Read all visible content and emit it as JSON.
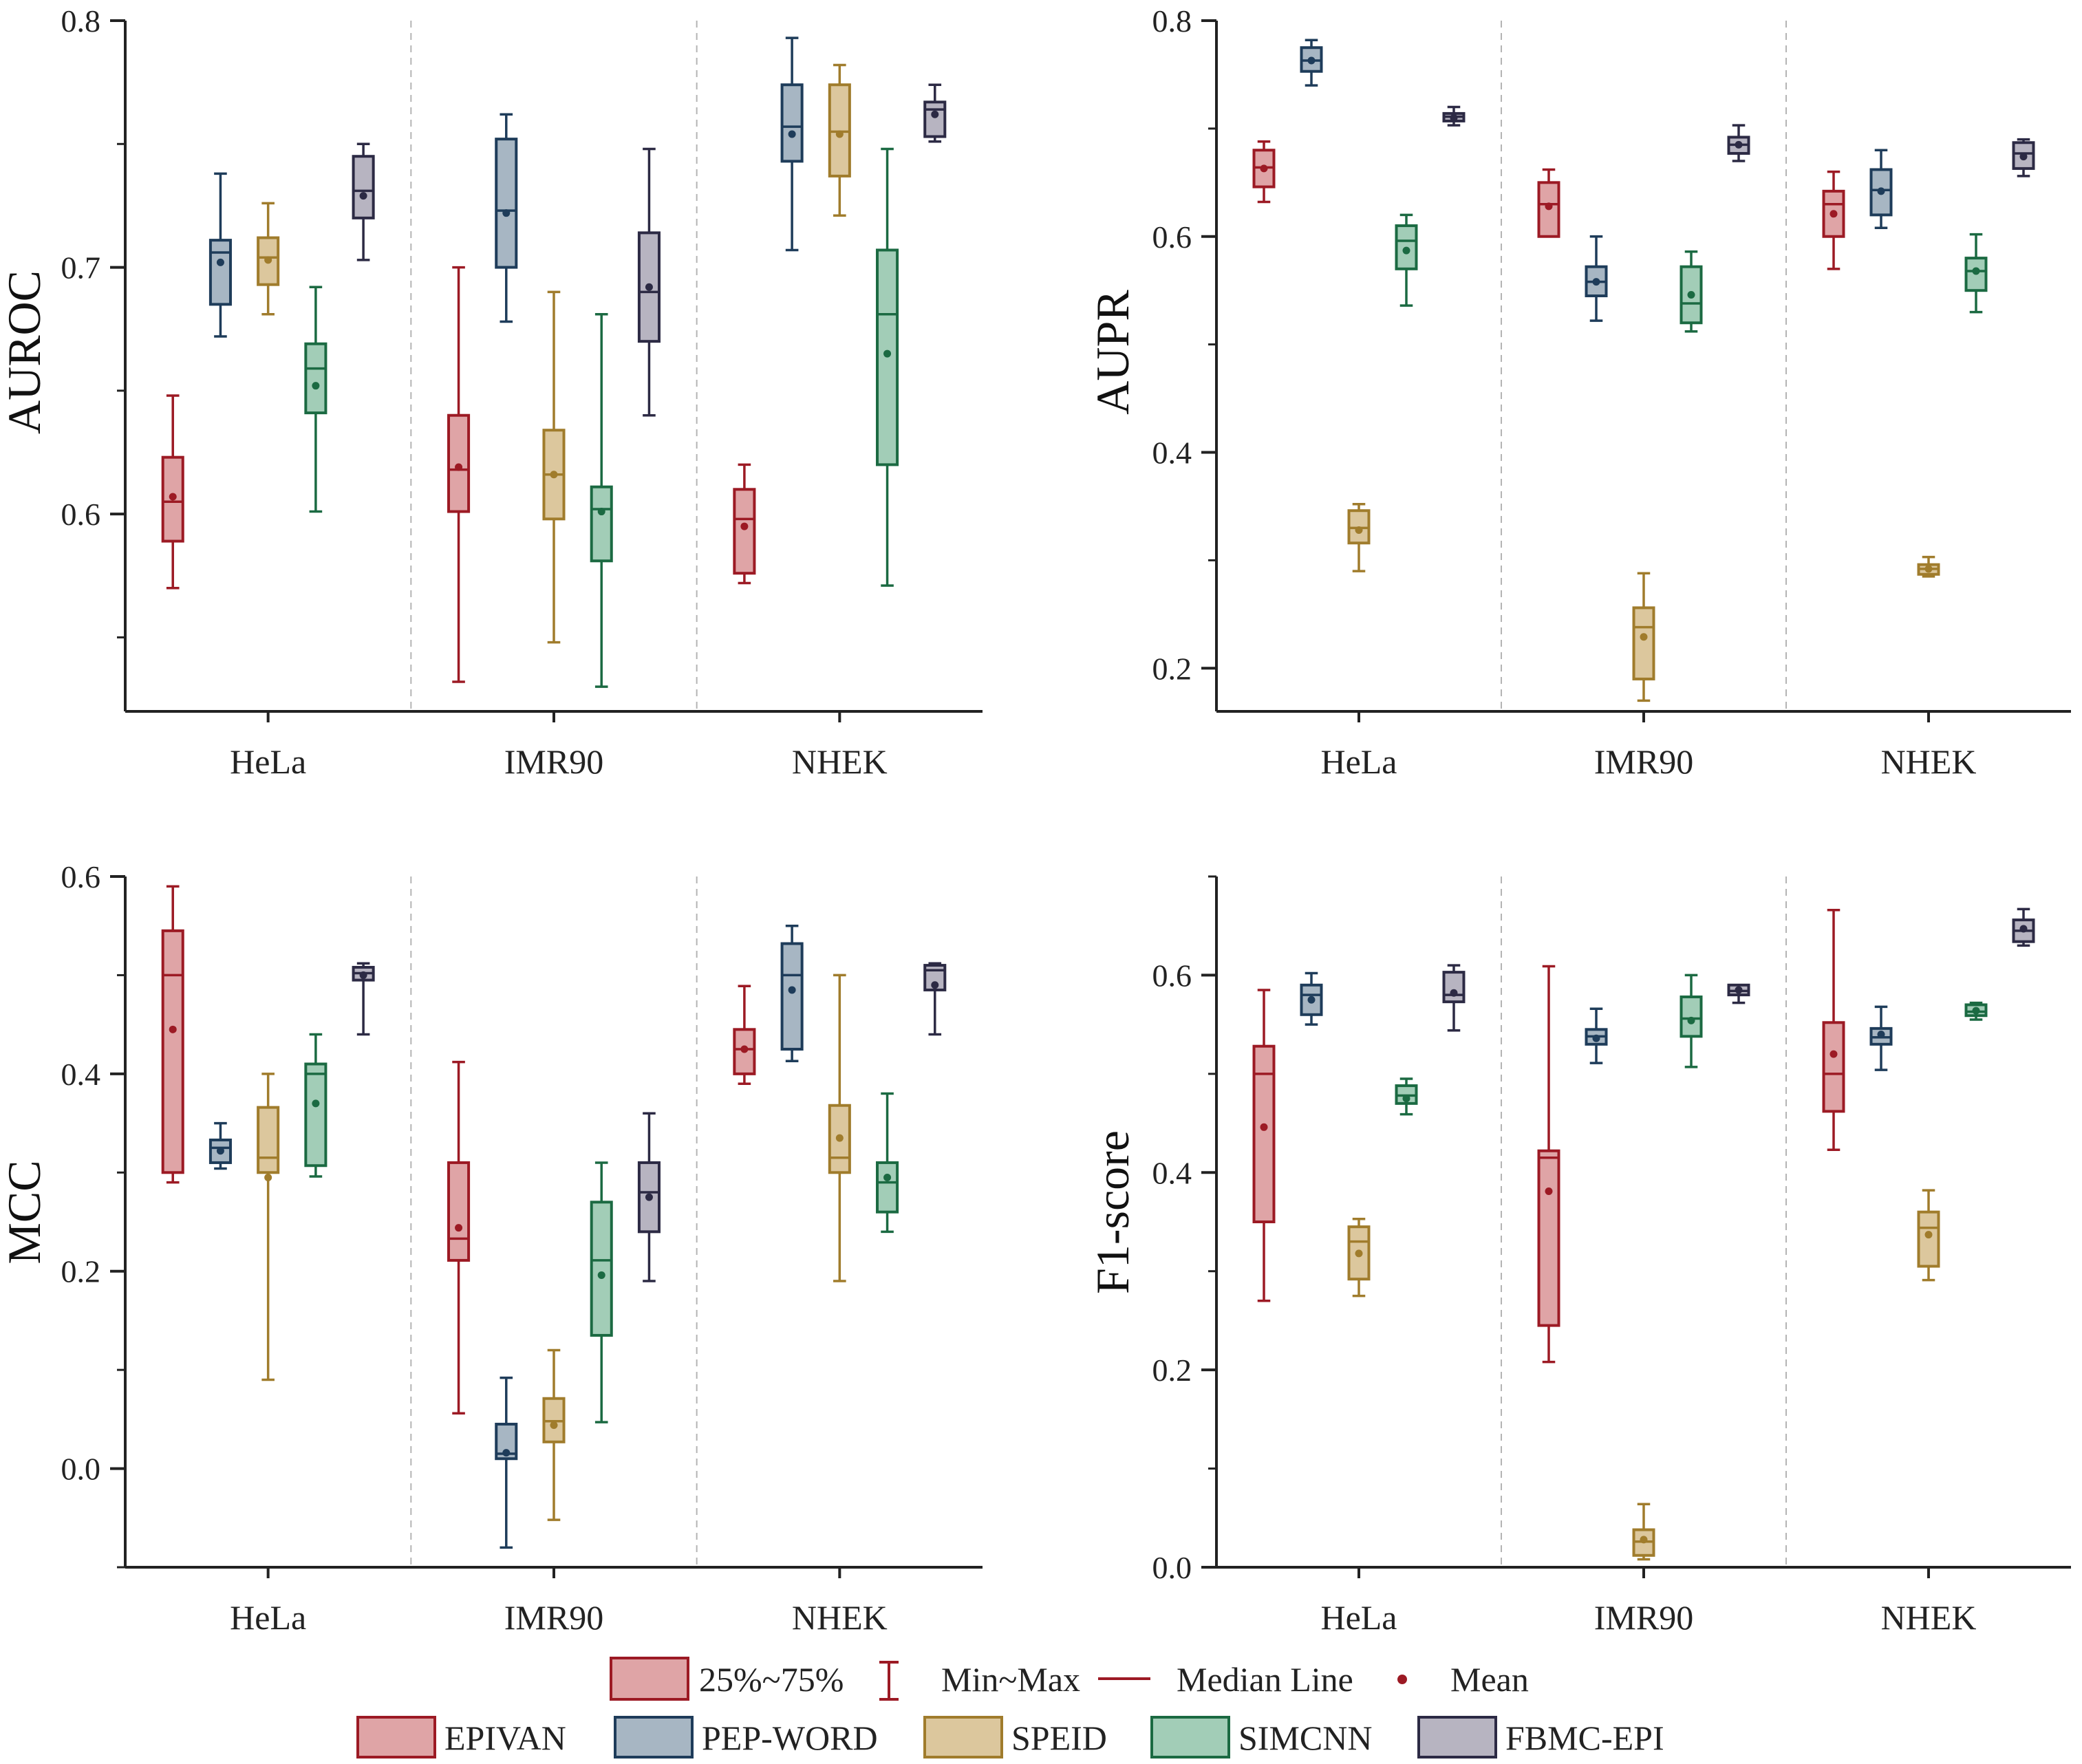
{
  "chart_data": [
    {
      "type": "box",
      "ylabel": "AUROC",
      "ylim": [
        0.52,
        0.8
      ],
      "yticks": [
        0.6,
        0.7,
        0.8
      ],
      "yminor": [
        0.55,
        0.65,
        0.75
      ],
      "ytick_labels": [
        "0.6",
        "0.7",
        "0.8"
      ],
      "groups": [
        "HeLa",
        "IMR90",
        "NHEK"
      ],
      "data": {
        "HeLa": [
          {
            "method": "EPIVAN",
            "min": 0.57,
            "q1": 0.589,
            "median": 0.605,
            "q3": 0.623,
            "max": 0.648,
            "mean": 0.607
          },
          {
            "method": "PEP-WORD",
            "min": 0.672,
            "q1": 0.685,
            "median": 0.706,
            "q3": 0.711,
            "max": 0.738,
            "mean": 0.702
          },
          {
            "method": "SPEID",
            "min": 0.681,
            "q1": 0.693,
            "median": 0.704,
            "q3": 0.712,
            "max": 0.726,
            "mean": 0.703
          },
          {
            "method": "SIMCNN",
            "min": 0.601,
            "q1": 0.641,
            "median": 0.659,
            "q3": 0.669,
            "max": 0.692,
            "mean": 0.652
          },
          {
            "method": "FBMC-EPI",
            "min": 0.703,
            "q1": 0.72,
            "median": 0.731,
            "q3": 0.745,
            "max": 0.75,
            "mean": 0.729
          }
        ],
        "IMR90": [
          {
            "method": "EPIVAN",
            "min": 0.532,
            "q1": 0.601,
            "median": 0.618,
            "q3": 0.64,
            "max": 0.7,
            "mean": 0.619
          },
          {
            "method": "PEP-WORD",
            "min": 0.678,
            "q1": 0.7,
            "median": 0.723,
            "q3": 0.752,
            "max": 0.762,
            "mean": 0.722
          },
          {
            "method": "SPEID",
            "min": 0.548,
            "q1": 0.598,
            "median": 0.616,
            "q3": 0.634,
            "max": 0.69,
            "mean": 0.616
          },
          {
            "method": "SIMCNN",
            "min": 0.53,
            "q1": 0.581,
            "median": 0.602,
            "q3": 0.611,
            "max": 0.681,
            "mean": 0.601
          },
          {
            "method": "FBMC-EPI",
            "min": 0.64,
            "q1": 0.67,
            "median": 0.69,
            "q3": 0.714,
            "max": 0.748,
            "mean": 0.692
          }
        ],
        "NHEK": [
          {
            "method": "EPIVAN",
            "min": 0.572,
            "q1": 0.576,
            "median": 0.598,
            "q3": 0.61,
            "max": 0.62,
            "mean": 0.595
          },
          {
            "method": "PEP-WORD",
            "min": 0.707,
            "q1": 0.743,
            "median": 0.757,
            "q3": 0.774,
            "max": 0.793,
            "mean": 0.754
          },
          {
            "method": "SPEID",
            "min": 0.721,
            "q1": 0.737,
            "median": 0.755,
            "q3": 0.774,
            "max": 0.782,
            "mean": 0.754
          },
          {
            "method": "SIMCNN",
            "min": 0.571,
            "q1": 0.62,
            "median": 0.681,
            "q3": 0.707,
            "max": 0.748,
            "mean": 0.665
          },
          {
            "method": "FBMC-EPI",
            "min": 0.751,
            "q1": 0.753,
            "median": 0.764,
            "q3": 0.767,
            "max": 0.774,
            "mean": 0.762
          }
        ]
      }
    },
    {
      "type": "box",
      "ylabel": "AUPR",
      "ylim": [
        0.16,
        0.8
      ],
      "yticks": [
        0.2,
        0.4,
        0.6,
        0.8
      ],
      "yminor": [
        0.3,
        0.5,
        0.7
      ],
      "ytick_labels": [
        "0.2",
        "0.4",
        "0.6",
        "0.8"
      ],
      "groups": [
        "HeLa",
        "IMR90",
        "NHEK"
      ],
      "data": {
        "HeLa": [
          {
            "method": "EPIVAN",
            "min": 0.632,
            "q1": 0.646,
            "median": 0.664,
            "q3": 0.68,
            "max": 0.688,
            "mean": 0.663
          },
          {
            "method": "PEP-WORD",
            "min": 0.74,
            "q1": 0.753,
            "median": 0.763,
            "q3": 0.775,
            "max": 0.782,
            "mean": 0.763
          },
          {
            "method": "SPEID",
            "min": 0.29,
            "q1": 0.316,
            "median": 0.33,
            "q3": 0.346,
            "max": 0.352,
            "mean": 0.328
          },
          {
            "method": "SIMCNN",
            "min": 0.536,
            "q1": 0.57,
            "median": 0.596,
            "q3": 0.61,
            "max": 0.62,
            "mean": 0.587
          },
          {
            "method": "FBMC-EPI",
            "min": 0.703,
            "q1": 0.707,
            "median": 0.711,
            "q3": 0.714,
            "max": 0.72,
            "mean": 0.71
          }
        ],
        "IMR90": [
          {
            "method": "EPIVAN",
            "min": 0.6,
            "q1": 0.6,
            "median": 0.63,
            "q3": 0.65,
            "max": 0.662,
            "mean": 0.628
          },
          {
            "method": "PEP-WORD",
            "min": 0.522,
            "q1": 0.545,
            "median": 0.558,
            "q3": 0.572,
            "max": 0.6,
            "mean": 0.558
          },
          {
            "method": "SPEID",
            "min": 0.17,
            "q1": 0.19,
            "median": 0.238,
            "q3": 0.256,
            "max": 0.288,
            "mean": 0.229
          },
          {
            "method": "SIMCNN",
            "min": 0.512,
            "q1": 0.52,
            "median": 0.538,
            "q3": 0.572,
            "max": 0.586,
            "mean": 0.546
          },
          {
            "method": "FBMC-EPI",
            "min": 0.67,
            "q1": 0.677,
            "median": 0.685,
            "q3": 0.692,
            "max": 0.703,
            "mean": 0.685
          }
        ],
        "NHEK": [
          {
            "method": "EPIVAN",
            "min": 0.57,
            "q1": 0.6,
            "median": 0.63,
            "q3": 0.642,
            "max": 0.66,
            "mean": 0.621
          },
          {
            "method": "PEP-WORD",
            "min": 0.608,
            "q1": 0.62,
            "median": 0.643,
            "q3": 0.662,
            "max": 0.68,
            "mean": 0.642
          },
          {
            "method": "SPEID",
            "min": 0.285,
            "q1": 0.287,
            "median": 0.292,
            "q3": 0.296,
            "max": 0.303,
            "mean": 0.292
          },
          {
            "method": "SIMCNN",
            "min": 0.53,
            "q1": 0.55,
            "median": 0.568,
            "q3": 0.58,
            "max": 0.602,
            "mean": 0.568
          },
          {
            "method": "FBMC-EPI",
            "min": 0.656,
            "q1": 0.663,
            "median": 0.677,
            "q3": 0.687,
            "max": 0.69,
            "mean": 0.674
          }
        ]
      }
    },
    {
      "type": "box",
      "ylabel": "MCC",
      "ylim": [
        -0.1,
        0.6
      ],
      "yticks": [
        0.0,
        0.2,
        0.4,
        0.6
      ],
      "yminor": [
        -0.1,
        0.1,
        0.3,
        0.5
      ],
      "ytick_labels": [
        "0.0",
        "0.2",
        "0.4",
        "0.6"
      ],
      "groups": [
        "HeLa",
        "IMR90",
        "NHEK"
      ],
      "data": {
        "HeLa": [
          {
            "method": "EPIVAN",
            "min": 0.29,
            "q1": 0.3,
            "median": 0.5,
            "q3": 0.545,
            "max": 0.59,
            "mean": 0.445
          },
          {
            "method": "PEP-WORD",
            "min": 0.304,
            "q1": 0.31,
            "median": 0.325,
            "q3": 0.333,
            "max": 0.35,
            "mean": 0.322
          },
          {
            "method": "SPEID",
            "min": 0.09,
            "q1": 0.3,
            "median": 0.315,
            "q3": 0.366,
            "max": 0.4,
            "mean": 0.295
          },
          {
            "method": "SIMCNN",
            "min": 0.296,
            "q1": 0.307,
            "median": 0.4,
            "q3": 0.41,
            "max": 0.44,
            "mean": 0.37
          },
          {
            "method": "FBMC-EPI",
            "min": 0.44,
            "q1": 0.495,
            "median": 0.502,
            "q3": 0.508,
            "max": 0.512,
            "mean": 0.5
          }
        ],
        "IMR90": [
          {
            "method": "EPIVAN",
            "min": 0.056,
            "q1": 0.211,
            "median": 0.233,
            "q3": 0.31,
            "max": 0.412,
            "mean": 0.244
          },
          {
            "method": "PEP-WORD",
            "min": -0.08,
            "q1": 0.01,
            "median": 0.015,
            "q3": 0.045,
            "max": 0.092,
            "mean": 0.016
          },
          {
            "method": "SPEID",
            "min": -0.052,
            "q1": 0.027,
            "median": 0.048,
            "q3": 0.071,
            "max": 0.12,
            "mean": 0.044
          },
          {
            "method": "SIMCNN",
            "min": 0.047,
            "q1": 0.135,
            "median": 0.211,
            "q3": 0.27,
            "max": 0.31,
            "mean": 0.196
          },
          {
            "method": "FBMC-EPI",
            "min": 0.19,
            "q1": 0.24,
            "median": 0.28,
            "q3": 0.31,
            "max": 0.36,
            "mean": 0.275
          }
        ],
        "NHEK": [
          {
            "method": "EPIVAN",
            "min": 0.39,
            "q1": 0.4,
            "median": 0.425,
            "q3": 0.445,
            "max": 0.489,
            "mean": 0.425
          },
          {
            "method": "PEP-WORD",
            "min": 0.413,
            "q1": 0.425,
            "median": 0.5,
            "q3": 0.532,
            "max": 0.55,
            "mean": 0.485
          },
          {
            "method": "SPEID",
            "min": 0.19,
            "q1": 0.3,
            "median": 0.315,
            "q3": 0.368,
            "max": 0.5,
            "mean": 0.335
          },
          {
            "method": "SIMCNN",
            "min": 0.24,
            "q1": 0.26,
            "median": 0.29,
            "q3": 0.31,
            "max": 0.38,
            "mean": 0.295
          },
          {
            "method": "FBMC-EPI",
            "min": 0.44,
            "q1": 0.485,
            "median": 0.505,
            "q3": 0.51,
            "max": 0.512,
            "mean": 0.49
          }
        ]
      }
    },
    {
      "type": "box",
      "ylabel": "F1-score",
      "ylim": [
        0.0,
        0.7
      ],
      "yticks": [
        0.0,
        0.2,
        0.4,
        0.6
      ],
      "yminor": [
        0.1,
        0.3,
        0.5,
        0.7
      ],
      "ytick_labels": [
        "0.0",
        "0.2",
        "0.4",
        "0.6"
      ],
      "groups": [
        "HeLa",
        "IMR90",
        "NHEK"
      ],
      "data": {
        "HeLa": [
          {
            "method": "EPIVAN",
            "min": 0.27,
            "q1": 0.35,
            "median": 0.5,
            "q3": 0.528,
            "max": 0.585,
            "mean": 0.446
          },
          {
            "method": "PEP-WORD",
            "min": 0.55,
            "q1": 0.56,
            "median": 0.58,
            "q3": 0.59,
            "max": 0.602,
            "mean": 0.575
          },
          {
            "method": "SPEID",
            "min": 0.275,
            "q1": 0.292,
            "median": 0.33,
            "q3": 0.345,
            "max": 0.353,
            "mean": 0.318
          },
          {
            "method": "SIMCNN",
            "min": 0.459,
            "q1": 0.47,
            "median": 0.478,
            "q3": 0.488,
            "max": 0.495,
            "mean": 0.475
          },
          {
            "method": "FBMC-EPI",
            "min": 0.544,
            "q1": 0.573,
            "median": 0.58,
            "q3": 0.603,
            "max": 0.61,
            "mean": 0.582
          }
        ],
        "IMR90": [
          {
            "method": "EPIVAN",
            "min": 0.208,
            "q1": 0.245,
            "median": 0.415,
            "q3": 0.422,
            "max": 0.609,
            "mean": 0.381
          },
          {
            "method": "PEP-WORD",
            "min": 0.511,
            "q1": 0.53,
            "median": 0.538,
            "q3": 0.545,
            "max": 0.566,
            "mean": 0.536
          },
          {
            "method": "SPEID",
            "min": 0.008,
            "q1": 0.012,
            "median": 0.026,
            "q3": 0.038,
            "max": 0.064,
            "mean": 0.028
          },
          {
            "method": "SIMCNN",
            "min": 0.507,
            "q1": 0.538,
            "median": 0.556,
            "q3": 0.578,
            "max": 0.6,
            "mean": 0.554
          },
          {
            "method": "FBMC-EPI",
            "min": 0.572,
            "q1": 0.58,
            "median": 0.584,
            "q3": 0.59,
            "max": 0.59,
            "mean": 0.585
          }
        ],
        "NHEK": [
          {
            "method": "EPIVAN",
            "min": 0.423,
            "q1": 0.462,
            "median": 0.5,
            "q3": 0.552,
            "max": 0.666,
            "mean": 0.52
          },
          {
            "method": "PEP-WORD",
            "min": 0.504,
            "q1": 0.53,
            "median": 0.537,
            "q3": 0.546,
            "max": 0.568,
            "mean": 0.54
          },
          {
            "method": "SPEID",
            "min": 0.291,
            "q1": 0.305,
            "median": 0.344,
            "q3": 0.36,
            "max": 0.382,
            "mean": 0.337
          },
          {
            "method": "SIMCNN",
            "min": 0.555,
            "q1": 0.559,
            "median": 0.563,
            "q3": 0.57,
            "max": 0.572,
            "mean": 0.564
          },
          {
            "method": "FBMC-EPI",
            "min": 0.63,
            "q1": 0.634,
            "median": 0.645,
            "q3": 0.656,
            "max": 0.667,
            "mean": 0.647
          }
        ]
      }
    }
  ],
  "legend": {
    "stats": [
      {
        "key": "box",
        "label": "25%~75%"
      },
      {
        "key": "whisker",
        "label": "Min~Max"
      },
      {
        "key": "median",
        "label": "Median Line"
      },
      {
        "key": "mean",
        "label": "Mean"
      }
    ],
    "methods": [
      {
        "name": "EPIVAN",
        "fill": "#dfa4a6",
        "stroke": "#9c1a24"
      },
      {
        "name": "PEP-WORD",
        "fill": "#a7b6c3",
        "stroke": "#1e3c5a"
      },
      {
        "name": "SPEID",
        "fill": "#dcc79d",
        "stroke": "#a07c2c"
      },
      {
        "name": "SIMCNN",
        "fill": "#a2cdb7",
        "stroke": "#1b6a42"
      },
      {
        "name": "FBMC-EPI",
        "fill": "#b7b4c1",
        "stroke": "#2c2a44"
      }
    ]
  },
  "colors": {
    "axis": "#222222",
    "separator": "#b4b4b4",
    "legend_box_fill": "#dfa4a6",
    "legend_accent": "#9c1a24"
  }
}
